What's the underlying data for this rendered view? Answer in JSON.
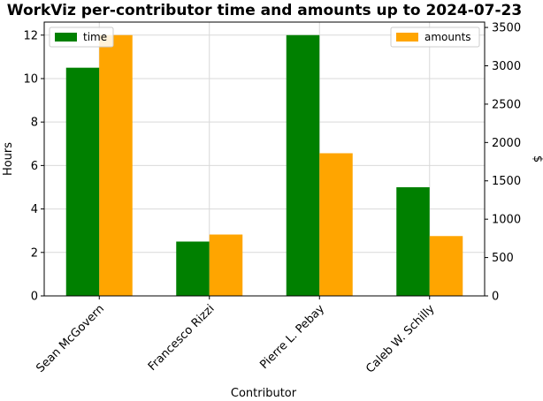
{
  "chart_data": {
    "type": "bar",
    "title": "WorkViz per-contributor time and amounts up to 2024-07-23",
    "xlabel": "Contributor",
    "ylabel_left": "Hours",
    "ylabel_right": "$",
    "categories": [
      "Sean McGovern",
      "Francesco Rizzi",
      "Pierre L. Pebay",
      "Caleb W. Schilly"
    ],
    "series": [
      {
        "name": "time",
        "axis": "left",
        "color": "#008000",
        "values": [
          10.5,
          2.5,
          12.0,
          5.0
        ]
      },
      {
        "name": "amounts",
        "axis": "right",
        "color": "#ffa500",
        "values": [
          3400,
          800,
          1860,
          780
        ]
      }
    ],
    "ylim_left": [
      0,
      12.6
    ],
    "ylim_right": [
      0,
      3570
    ],
    "yticks_left": [
      0,
      2,
      4,
      6,
      8,
      10,
      12
    ],
    "yticks_right": [
      0,
      500,
      1000,
      1500,
      2000,
      2500,
      3000,
      3500
    ],
    "grid": true,
    "legend_left_placement": "top-left",
    "legend_right_placement": "top-right"
  }
}
